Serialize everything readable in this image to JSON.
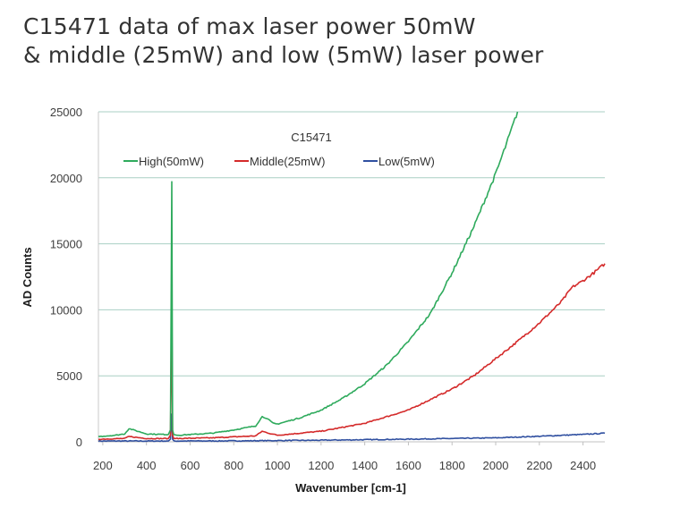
{
  "page_title": {
    "line1": "C15471 data of max laser power 50mW",
    "line2": "& middle (25mW) and low (5mW) laser power"
  },
  "chart_data": {
    "type": "line",
    "title": "C15471",
    "xlabel": "Wavenumber [cm-1]",
    "ylabel": "AD Counts",
    "xlim": [
      180,
      2500
    ],
    "ylim": [
      0,
      25000
    ],
    "x_ticks": [
      200,
      400,
      600,
      800,
      1000,
      1200,
      1400,
      1600,
      1800,
      2000,
      2200,
      2400
    ],
    "y_ticks": [
      0,
      5000,
      10000,
      15000,
      20000,
      25000
    ],
    "grid": "horizontal",
    "legend_position": "top-center",
    "series": [
      {
        "name": "High(50mW)",
        "color": "#2eaa5c",
        "x": [
          180,
          260,
          300,
          320,
          400,
          500,
          510,
          516,
          520,
          525,
          540,
          600,
          700,
          800,
          900,
          930,
          950,
          980,
          1000,
          1100,
          1200,
          1300,
          1400,
          1500,
          1600,
          1700,
          1800,
          1900,
          2000,
          2050,
          2100
        ],
        "y": [
          400,
          500,
          600,
          1000,
          600,
          550,
          900,
          19700,
          900,
          550,
          500,
          550,
          650,
          900,
          1200,
          1900,
          1800,
          1400,
          1350,
          1800,
          2400,
          3300,
          4400,
          5800,
          7600,
          9700,
          12800,
          16300,
          20300,
          22600,
          25000
        ]
      },
      {
        "name": "Middle(25mW)",
        "color": "#d42a2a",
        "x": [
          180,
          300,
          320,
          400,
          500,
          510,
          516,
          520,
          525,
          540,
          700,
          900,
          930,
          950,
          1000,
          1200,
          1400,
          1600,
          1800,
          1900,
          2000,
          2100,
          2200,
          2300,
          2350,
          2400,
          2450,
          2500
        ],
        "y": [
          200,
          250,
          400,
          250,
          250,
          500,
          10300,
          500,
          250,
          250,
          300,
          450,
          800,
          700,
          500,
          800,
          1400,
          2400,
          4000,
          5000,
          6300,
          7600,
          9000,
          10600,
          11700,
          12200,
          12800,
          13500
        ]
      },
      {
        "name": "Low(5mW)",
        "color": "#2f4fa0",
        "x": [
          180,
          500,
          510,
          516,
          520,
          525,
          800,
          1200,
          1600,
          2000,
          2200,
          2400,
          2500
        ],
        "y": [
          60,
          60,
          200,
          2100,
          200,
          60,
          70,
          120,
          200,
          300,
          420,
          560,
          650
        ]
      }
    ]
  }
}
